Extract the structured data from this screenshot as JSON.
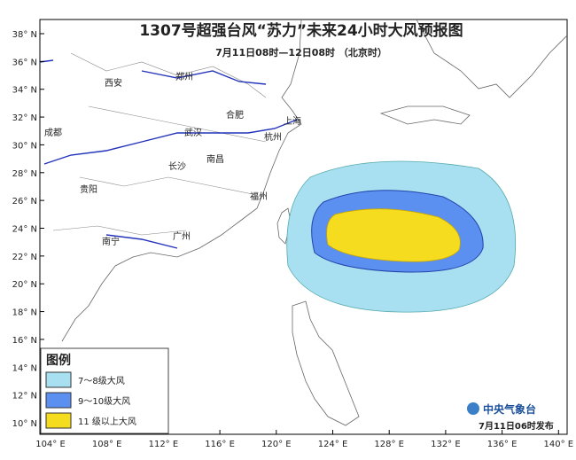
{
  "header": {
    "title": "1307号超强台风“苏力”未来24小时大风预报图",
    "subtitle": "7月11日08时—12日08时 （北京时）"
  },
  "axes": {
    "latitude": [
      "38° N",
      "36° N",
      "34° N",
      "32° N",
      "30° N",
      "28° N",
      "26° N",
      "24° N",
      "22° N",
      "20° N",
      "18° N",
      "16° N",
      "14° N",
      "12° N",
      "10° N"
    ],
    "longitude": [
      "104° E",
      "108° E",
      "112° E",
      "116° E",
      "120° E",
      "124° E",
      "128° E",
      "132° E",
      "136° E",
      "140° E"
    ]
  },
  "cities": [
    "西安",
    "郑州",
    "合肥",
    "成都",
    "武汉",
    "杭州",
    "上海",
    "长沙",
    "南昌",
    "贵阳",
    "福州",
    "南宁",
    "广州"
  ],
  "legend": {
    "title": "图例",
    "items": [
      "7～8级大风",
      "9～10级大风",
      "11 级以上大风"
    ]
  },
  "footer": {
    "agency": "中央气象台",
    "issued": "7月11日06时发布"
  }
}
